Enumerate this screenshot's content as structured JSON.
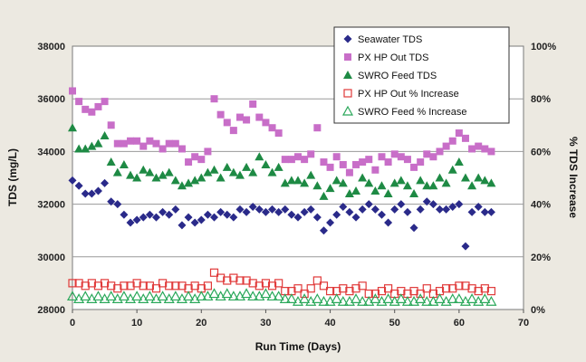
{
  "chart_data": {
    "type": "scatter",
    "xlabel": "Run Time (Days)",
    "ylabel": "TDS (mg/L)",
    "y2label": "% TDS Increase",
    "xlim": [
      0,
      70
    ],
    "ylim": [
      28000,
      38000
    ],
    "y2lim": [
      0,
      100
    ],
    "x_ticks": [
      "0",
      "10",
      "20",
      "30",
      "40",
      "50",
      "60",
      "70"
    ],
    "y_ticks": [
      "28000",
      "30000",
      "32000",
      "34000",
      "36000",
      "38000"
    ],
    "y2_ticks": [
      "0%",
      "20%",
      "40%",
      "60%",
      "80%",
      "100%"
    ],
    "grid": "horizontal",
    "legend_position": "top-right",
    "colors": {
      "seawater": "#2a2a8a",
      "px_hp_out": "#c86ec8",
      "swro_feed": "#1e8a44",
      "px_pct": "#e03a3a",
      "swro_pct": "#2aa85a"
    },
    "series": [
      {
        "name": "Seawater TDS",
        "marker": "diamond",
        "axis": "left",
        "x": [
          0,
          1,
          2,
          3,
          4,
          5,
          6,
          7,
          8,
          9,
          10,
          11,
          12,
          13,
          14,
          15,
          16,
          17,
          18,
          19,
          20,
          21,
          22,
          23,
          24,
          25,
          26,
          27,
          28,
          29,
          30,
          31,
          32,
          33,
          34,
          35,
          36,
          37,
          38,
          39,
          40,
          41,
          42,
          43,
          44,
          45,
          46,
          47,
          48,
          49,
          50,
          51,
          52,
          53,
          54,
          55,
          56,
          57,
          58,
          59,
          60,
          61,
          62,
          63,
          64,
          65
        ],
        "y": [
          32900,
          32700,
          32400,
          32400,
          32500,
          32800,
          32100,
          32000,
          31600,
          31300,
          31400,
          31500,
          31600,
          31500,
          31700,
          31600,
          31800,
          31200,
          31500,
          31300,
          31400,
          31600,
          31500,
          31700,
          31600,
          31500,
          31800,
          31700,
          31900,
          31800,
          31700,
          31800,
          31700,
          31800,
          31600,
          31500,
          31700,
          31800,
          31500,
          31000,
          31300,
          31600,
          31900,
          31700,
          31500,
          31800,
          32000,
          31800,
          31600,
          31300,
          31800,
          32000,
          31700,
          31100,
          31800,
          32100,
          32000,
          31800,
          31800,
          31900,
          32000,
          30400,
          31700,
          31900,
          31700,
          31700
        ]
      },
      {
        "name": "PX HP Out TDS",
        "marker": "square",
        "axis": "left",
        "x": [
          0,
          1,
          2,
          3,
          4,
          5,
          6,
          7,
          8,
          9,
          10,
          11,
          12,
          13,
          14,
          15,
          16,
          17,
          18,
          19,
          20,
          21,
          22,
          23,
          24,
          25,
          26,
          27,
          28,
          29,
          30,
          31,
          32,
          33,
          34,
          35,
          36,
          37,
          38,
          39,
          40,
          41,
          42,
          43,
          44,
          45,
          46,
          47,
          48,
          49,
          50,
          51,
          52,
          53,
          54,
          55,
          56,
          57,
          58,
          59,
          60,
          61,
          62,
          63,
          64,
          65
        ],
        "y": [
          36300,
          35900,
          35600,
          35500,
          35700,
          35900,
          35000,
          34300,
          34300,
          34400,
          34400,
          34200,
          34400,
          34300,
          34100,
          34300,
          34300,
          34100,
          33600,
          33800,
          33700,
          34000,
          36000,
          35400,
          35100,
          34800,
          35300,
          35200,
          35800,
          35300,
          35100,
          34900,
          34700,
          33700,
          33700,
          33800,
          33700,
          33900,
          34900,
          33600,
          33400,
          33800,
          33500,
          33200,
          33500,
          33600,
          33700,
          33300,
          33800,
          33600,
          33900,
          33800,
          33700,
          33400,
          33600,
          33900,
          33800,
          34000,
          34200,
          34400,
          34700,
          34500,
          34100,
          34200,
          34100,
          34000
        ]
      },
      {
        "name": "SWRO Feed TDS",
        "marker": "triangle",
        "axis": "left",
        "x": [
          0,
          1,
          2,
          3,
          4,
          5,
          6,
          7,
          8,
          9,
          10,
          11,
          12,
          13,
          14,
          15,
          16,
          17,
          18,
          19,
          20,
          21,
          22,
          23,
          24,
          25,
          26,
          27,
          28,
          29,
          30,
          31,
          32,
          33,
          34,
          35,
          36,
          37,
          38,
          39,
          40,
          41,
          42,
          43,
          44,
          45,
          46,
          47,
          48,
          49,
          50,
          51,
          52,
          53,
          54,
          55,
          56,
          57,
          58,
          59,
          60,
          61,
          62,
          63,
          64,
          65
        ],
        "y": [
          34900,
          34100,
          34100,
          34200,
          34300,
          34600,
          33600,
          33200,
          33500,
          33100,
          33000,
          33300,
          33200,
          33000,
          33100,
          33200,
          32900,
          32700,
          32800,
          32900,
          33000,
          33200,
          33300,
          33000,
          33400,
          33200,
          33100,
          33400,
          33200,
          33800,
          33500,
          33200,
          33400,
          32800,
          32900,
          32900,
          32800,
          33100,
          32700,
          32300,
          32600,
          32900,
          32800,
          32400,
          32500,
          33000,
          32800,
          32500,
          32700,
          32400,
          32800,
          32900,
          32700,
          32400,
          32900,
          32700,
          32700,
          33000,
          32800,
          33300,
          33600,
          33000,
          32700,
          33000,
          32900,
          32800
        ]
      },
      {
        "name": "PX HP Out % Increase",
        "marker": "open-square",
        "axis": "right",
        "x": [
          0,
          1,
          2,
          3,
          4,
          5,
          6,
          7,
          8,
          9,
          10,
          11,
          12,
          13,
          14,
          15,
          16,
          17,
          18,
          19,
          20,
          21,
          22,
          23,
          24,
          25,
          26,
          27,
          28,
          29,
          30,
          31,
          32,
          33,
          34,
          35,
          36,
          37,
          38,
          39,
          40,
          41,
          42,
          43,
          44,
          45,
          46,
          47,
          48,
          49,
          50,
          51,
          52,
          53,
          54,
          55,
          56,
          57,
          58,
          59,
          60,
          61,
          62,
          63,
          64,
          65
        ],
        "y": [
          10,
          10,
          9,
          10,
          9,
          10,
          9,
          8,
          9,
          9,
          10,
          9,
          9,
          8,
          10,
          9,
          9,
          9,
          8,
          9,
          8,
          9,
          14,
          12,
          11,
          12,
          11,
          11,
          10,
          9,
          10,
          9,
          10,
          7,
          7,
          8,
          6,
          8,
          11,
          9,
          7,
          7,
          8,
          7,
          8,
          9,
          6,
          6,
          7,
          8,
          6,
          7,
          6,
          7,
          6,
          8,
          6,
          7,
          8,
          8,
          9,
          9,
          8,
          7,
          8,
          7
        ]
      },
      {
        "name": "SWRO Feed % Increase",
        "marker": "open-triangle",
        "axis": "right",
        "x": [
          0,
          1,
          2,
          3,
          4,
          5,
          6,
          7,
          8,
          9,
          10,
          11,
          12,
          13,
          14,
          15,
          16,
          17,
          18,
          19,
          20,
          21,
          22,
          23,
          24,
          25,
          26,
          27,
          28,
          29,
          30,
          31,
          32,
          33,
          34,
          35,
          36,
          37,
          38,
          39,
          40,
          41,
          42,
          43,
          44,
          45,
          46,
          47,
          48,
          49,
          50,
          51,
          52,
          53,
          54,
          55,
          56,
          57,
          58,
          59,
          60,
          61,
          62,
          63,
          64,
          65
        ],
        "y": [
          5,
          4,
          5,
          4,
          5,
          4,
          5,
          4,
          5,
          4,
          5,
          4,
          5,
          4,
          5,
          4,
          5,
          4,
          5,
          4,
          5,
          5,
          6,
          5,
          6,
          5,
          5,
          6,
          5,
          5,
          6,
          5,
          5,
          4,
          4,
          3,
          4,
          3,
          4,
          3,
          3,
          4,
          3,
          3,
          4,
          3,
          3,
          4,
          3,
          4,
          3,
          4,
          3,
          3,
          4,
          3,
          3,
          4,
          3,
          4,
          4,
          3,
          4,
          3,
          4,
          3
        ]
      }
    ]
  }
}
